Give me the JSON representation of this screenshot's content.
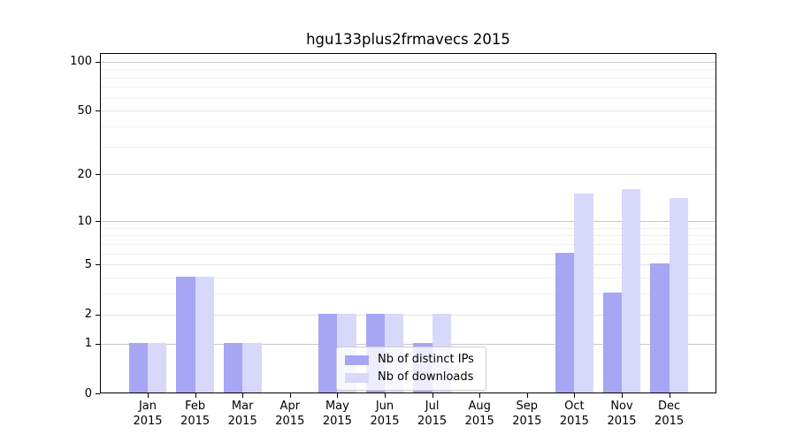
{
  "chart_data": {
    "type": "bar",
    "title": "hgu133plus2frmavecs 2015",
    "categories": [
      "Jan",
      "Feb",
      "Mar",
      "Apr",
      "May",
      "Jun",
      "Jul",
      "Aug",
      "Sep",
      "Oct",
      "Nov",
      "Dec"
    ],
    "x_year": "2015",
    "series": [
      {
        "name": "Nb of distinct IPs",
        "color": "#a6a6f4",
        "values": [
          1,
          4,
          1,
          0,
          2,
          2,
          1,
          0,
          0,
          6,
          3,
          5
        ]
      },
      {
        "name": "Nb of downloads",
        "color": "#d8d8fa",
        "values": [
          1,
          4,
          1,
          0,
          2,
          2,
          2,
          0,
          0,
          15,
          16,
          14
        ]
      }
    ],
    "xlabel": "",
    "ylabel": "",
    "y_scale": "log1p",
    "ylim": [
      0,
      113
    ],
    "y_tick_labels": [
      "100",
      "50",
      "20",
      "10",
      "5",
      "2",
      "1",
      "0"
    ],
    "y_tick_values": [
      100,
      50,
      20,
      10,
      5,
      2,
      1,
      0
    ],
    "y_decade_gridlines": [
      1,
      10,
      100
    ],
    "y_mid_gridlines": [
      2,
      5,
      20,
      50
    ],
    "y_minor_gridlines": [
      3,
      4,
      6,
      7,
      8,
      9,
      30,
      40,
      60,
      70,
      80,
      90
    ],
    "grid": "horizontal",
    "legend_position": "lower center"
  }
}
